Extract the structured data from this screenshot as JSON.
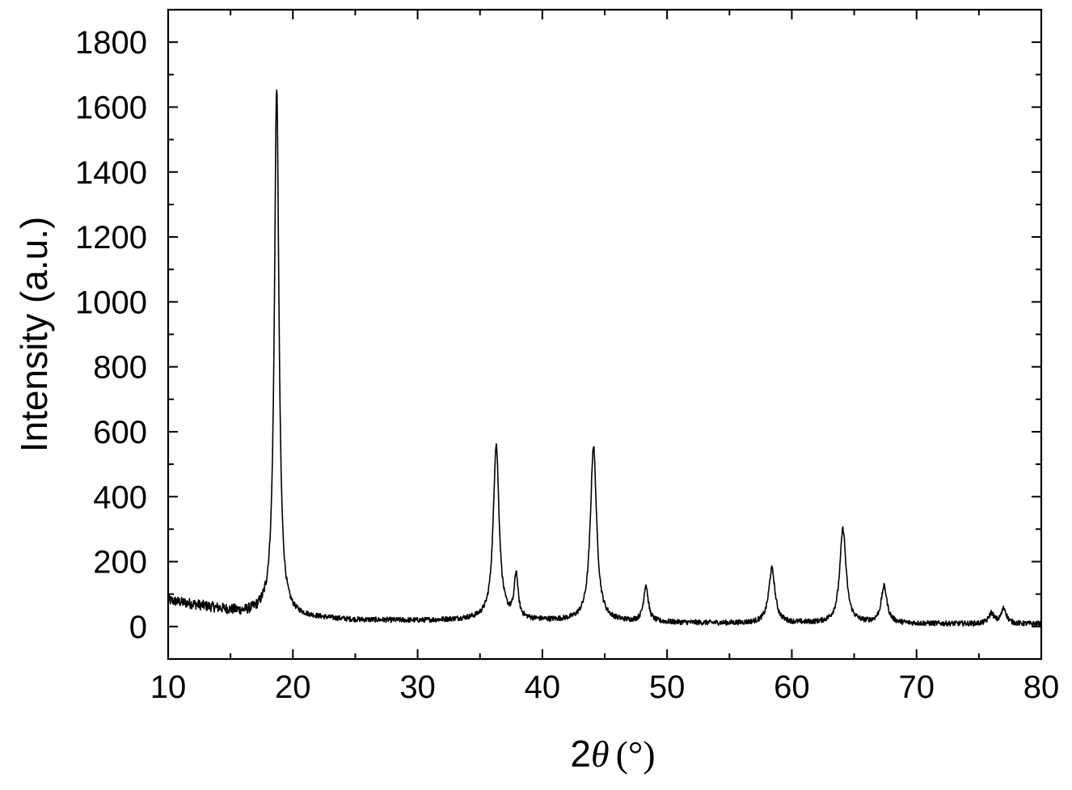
{
  "chart_data": {
    "type": "line",
    "xlabel": "2θ (°)",
    "xlabel_parts": {
      "prefix": "2",
      "symbol": "θ",
      "unit": "(°)"
    },
    "ylabel": "Intensity (a.u.)",
    "xlim": [
      10,
      80
    ],
    "ylim": [
      -100,
      1900
    ],
    "xticks": [
      10,
      20,
      30,
      40,
      50,
      60,
      70,
      80
    ],
    "yticks": [
      0,
      200,
      400,
      600,
      800,
      1000,
      1200,
      1400,
      1600,
      1800
    ],
    "grid": false,
    "legend": "none",
    "line_color": "#000000",
    "series": [
      {
        "peaks": [
          {
            "x": 18.7,
            "y": 1660,
            "width": 0.22
          },
          {
            "x": 36.3,
            "y": 560,
            "width": 0.28
          },
          {
            "x": 37.9,
            "y": 155,
            "width": 0.18
          },
          {
            "x": 44.1,
            "y": 555,
            "width": 0.3
          },
          {
            "x": 48.3,
            "y": 125,
            "width": 0.22
          },
          {
            "x": 58.4,
            "y": 178,
            "width": 0.3
          },
          {
            "x": 64.1,
            "y": 300,
            "width": 0.3
          },
          {
            "x": 67.4,
            "y": 122,
            "width": 0.28
          },
          {
            "x": 76.0,
            "y": 40,
            "width": 0.25
          },
          {
            "x": 77.0,
            "y": 55,
            "width": 0.25
          }
        ],
        "baseline": [
          [
            10,
            80
          ],
          [
            12,
            68
          ],
          [
            14,
            55
          ],
          [
            16,
            42
          ],
          [
            17.8,
            40
          ],
          [
            20,
            30
          ],
          [
            25,
            20
          ],
          [
            30,
            18
          ],
          [
            35,
            22
          ],
          [
            40,
            18
          ],
          [
            45,
            15
          ],
          [
            50,
            12
          ],
          [
            55,
            10
          ],
          [
            60,
            10
          ],
          [
            65,
            10
          ],
          [
            70,
            9
          ],
          [
            75,
            8
          ],
          [
            80,
            8
          ]
        ]
      }
    ]
  }
}
